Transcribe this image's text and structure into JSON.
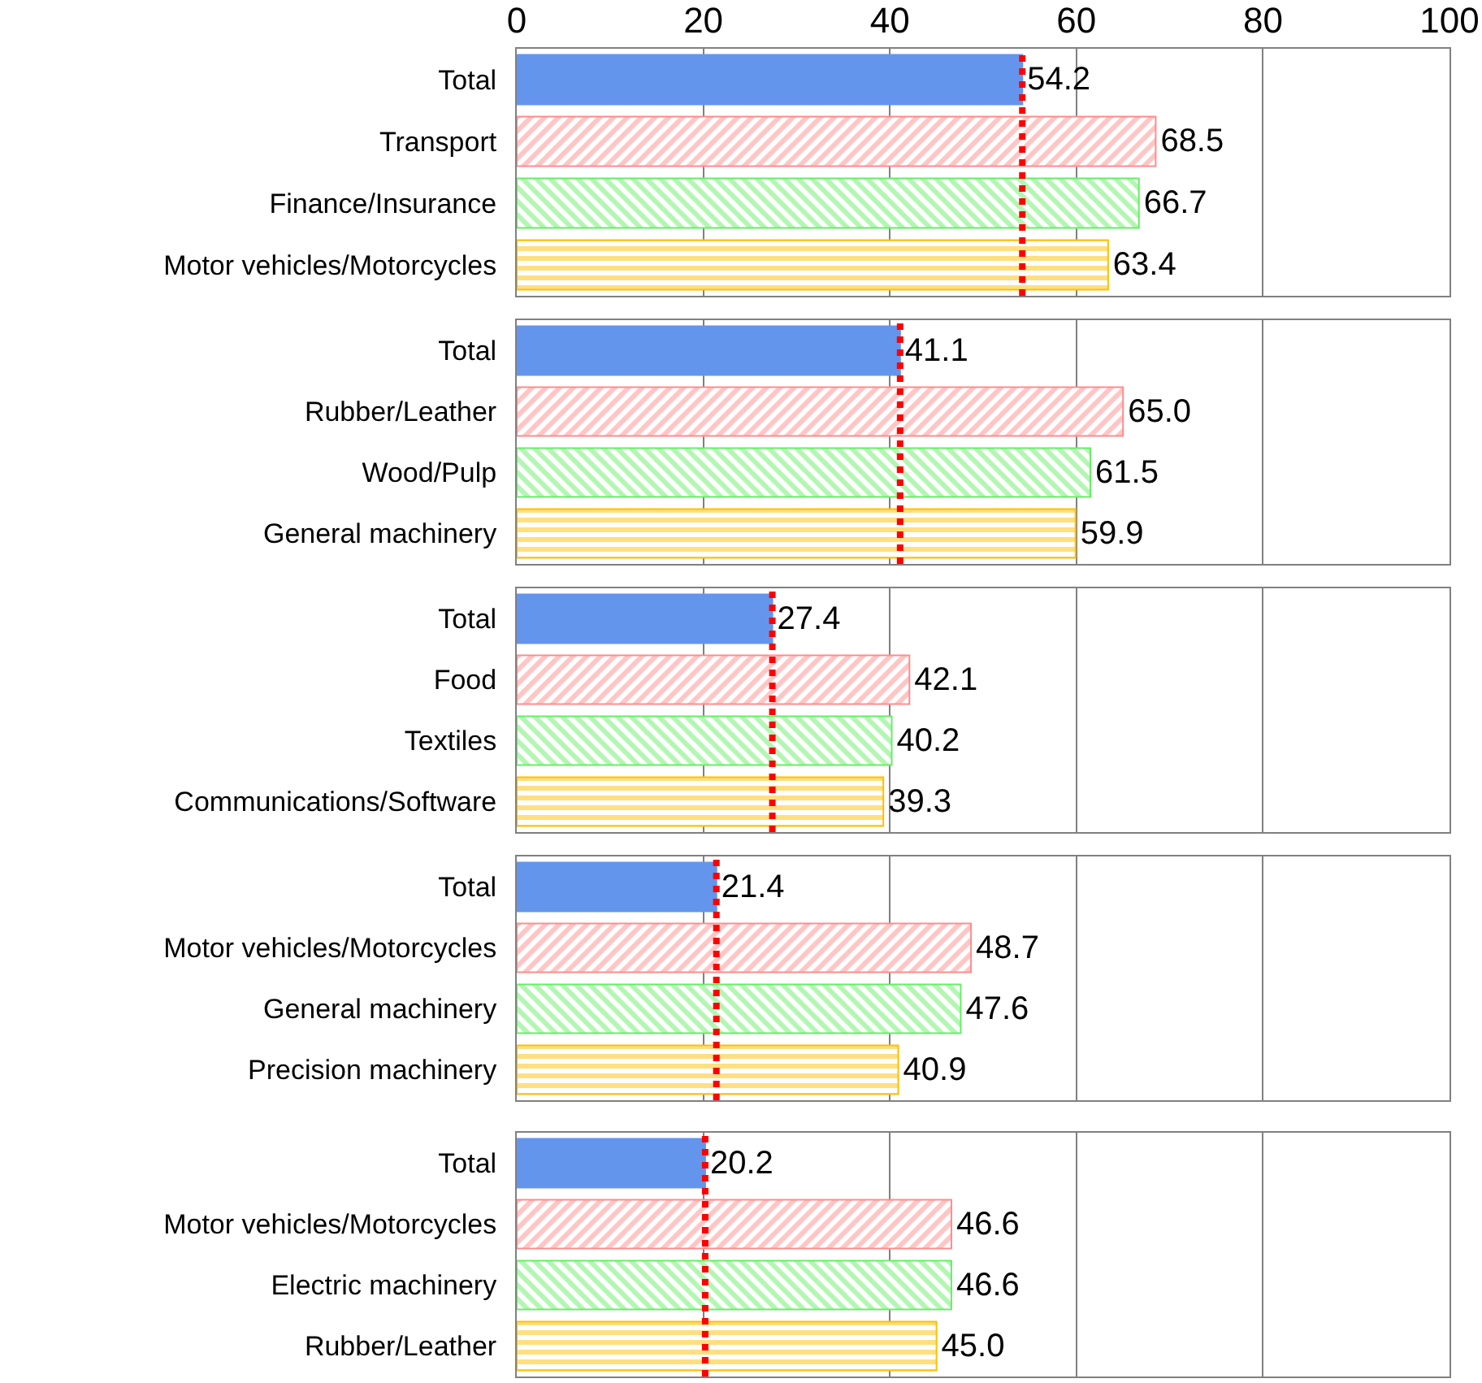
{
  "chart_data": [
    {
      "type": "bar",
      "orientation": "horizontal",
      "categories": [
        "Total",
        "Transport",
        "Finance/Insurance",
        "Motor vehicles/Motorcycles"
      ],
      "values": [
        54.2,
        68.5,
        66.7,
        63.4
      ],
      "value_labels": [
        "54.2",
        "68.5",
        "66.7",
        "63.4"
      ],
      "colors": [
        "#6495ed",
        "#ff8c8c",
        "#66ee66",
        "#ffc000"
      ],
      "xlim": [
        0,
        100
      ],
      "xticks": [
        0,
        20,
        40,
        60,
        80,
        100
      ],
      "grid": "x",
      "ref_lines": [
        {
          "axis": "x",
          "value": 54.2,
          "color": "#ff0000",
          "line_style": "dotted"
        }
      ]
    },
    {
      "type": "bar",
      "orientation": "horizontal",
      "categories": [
        "Total",
        "Rubber/Leather",
        "Wood/Pulp",
        "General machinery"
      ],
      "values": [
        41.1,
        65.0,
        61.5,
        59.9
      ],
      "value_labels": [
        "41.1",
        "65.0",
        "61.5",
        "59.9"
      ],
      "colors": [
        "#6495ed",
        "#ff8c8c",
        "#66ee66",
        "#ffc000"
      ],
      "xlim": [
        0,
        100
      ],
      "xticks": [
        0,
        20,
        40,
        60,
        80,
        100
      ],
      "tick_labels": "y",
      "grid": "x",
      "ref_lines": [
        {
          "axis": "x",
          "value": 41.1,
          "color": "#ff0000",
          "line_style": "dotted"
        }
      ]
    },
    {
      "type": "bar",
      "orientation": "horizontal",
      "categories": [
        "Total",
        "Food",
        "Textiles",
        "Communications/Software"
      ],
      "values": [
        27.4,
        42.1,
        40.2,
        39.3
      ],
      "value_labels": [
        "27.4",
        "42.1",
        "40.2",
        "39.3"
      ],
      "colors": [
        "#6495ed",
        "#ff8c8c",
        "#66ee66",
        "#ffc000"
      ],
      "xlim": [
        0,
        100
      ],
      "xticks": [
        0,
        20,
        40,
        60,
        80,
        100
      ],
      "tick_labels": "y",
      "grid": "x",
      "ref_lines": [
        {
          "axis": "x",
          "value": 27.4,
          "color": "#ff0000",
          "line_style": "dotted"
        }
      ]
    },
    {
      "type": "bar",
      "orientation": "horizontal",
      "categories": [
        "Total",
        "Motor vehicles/Motorcycles",
        "General machinery",
        "Precision machinery"
      ],
      "values": [
        21.4,
        48.7,
        47.6,
        40.9
      ],
      "value_labels": [
        "21.4",
        "48.7",
        "47.6",
        "40.9"
      ],
      "colors": [
        "#6495ed",
        "#ff8c8c",
        "#66ee66",
        "#ffc000"
      ],
      "xlim": [
        0,
        100
      ],
      "xticks": [
        0,
        20,
        40,
        60,
        80,
        100
      ],
      "tick_labels": "y",
      "grid": "x",
      "ref_lines": [
        {
          "axis": "x",
          "value": 21.4,
          "color": "#ff0000",
          "line_style": "dotted"
        }
      ]
    },
    {
      "type": "bar",
      "orientation": "horizontal",
      "categories": [
        "Total",
        "Motor vehicles/Motorcycles",
        "Electric machinery",
        "Rubber/Leather"
      ],
      "values": [
        20.2,
        46.6,
        46.6,
        45.0
      ],
      "value_labels": [
        "20.2",
        "46.6",
        "46.6",
        "45.0"
      ],
      "colors": [
        "#6495ed",
        "#ff8c8c",
        "#66ee66",
        "#ffc000"
      ],
      "xlim": [
        0,
        100
      ],
      "xticks": [
        0,
        20,
        40,
        60,
        80,
        100
      ],
      "tick_labels": "y",
      "grid": "x",
      "ref_lines": [
        {
          "axis": "x",
          "value": 20.2,
          "color": "#ff0000",
          "line_style": "dotted"
        }
      ]
    }
  ]
}
